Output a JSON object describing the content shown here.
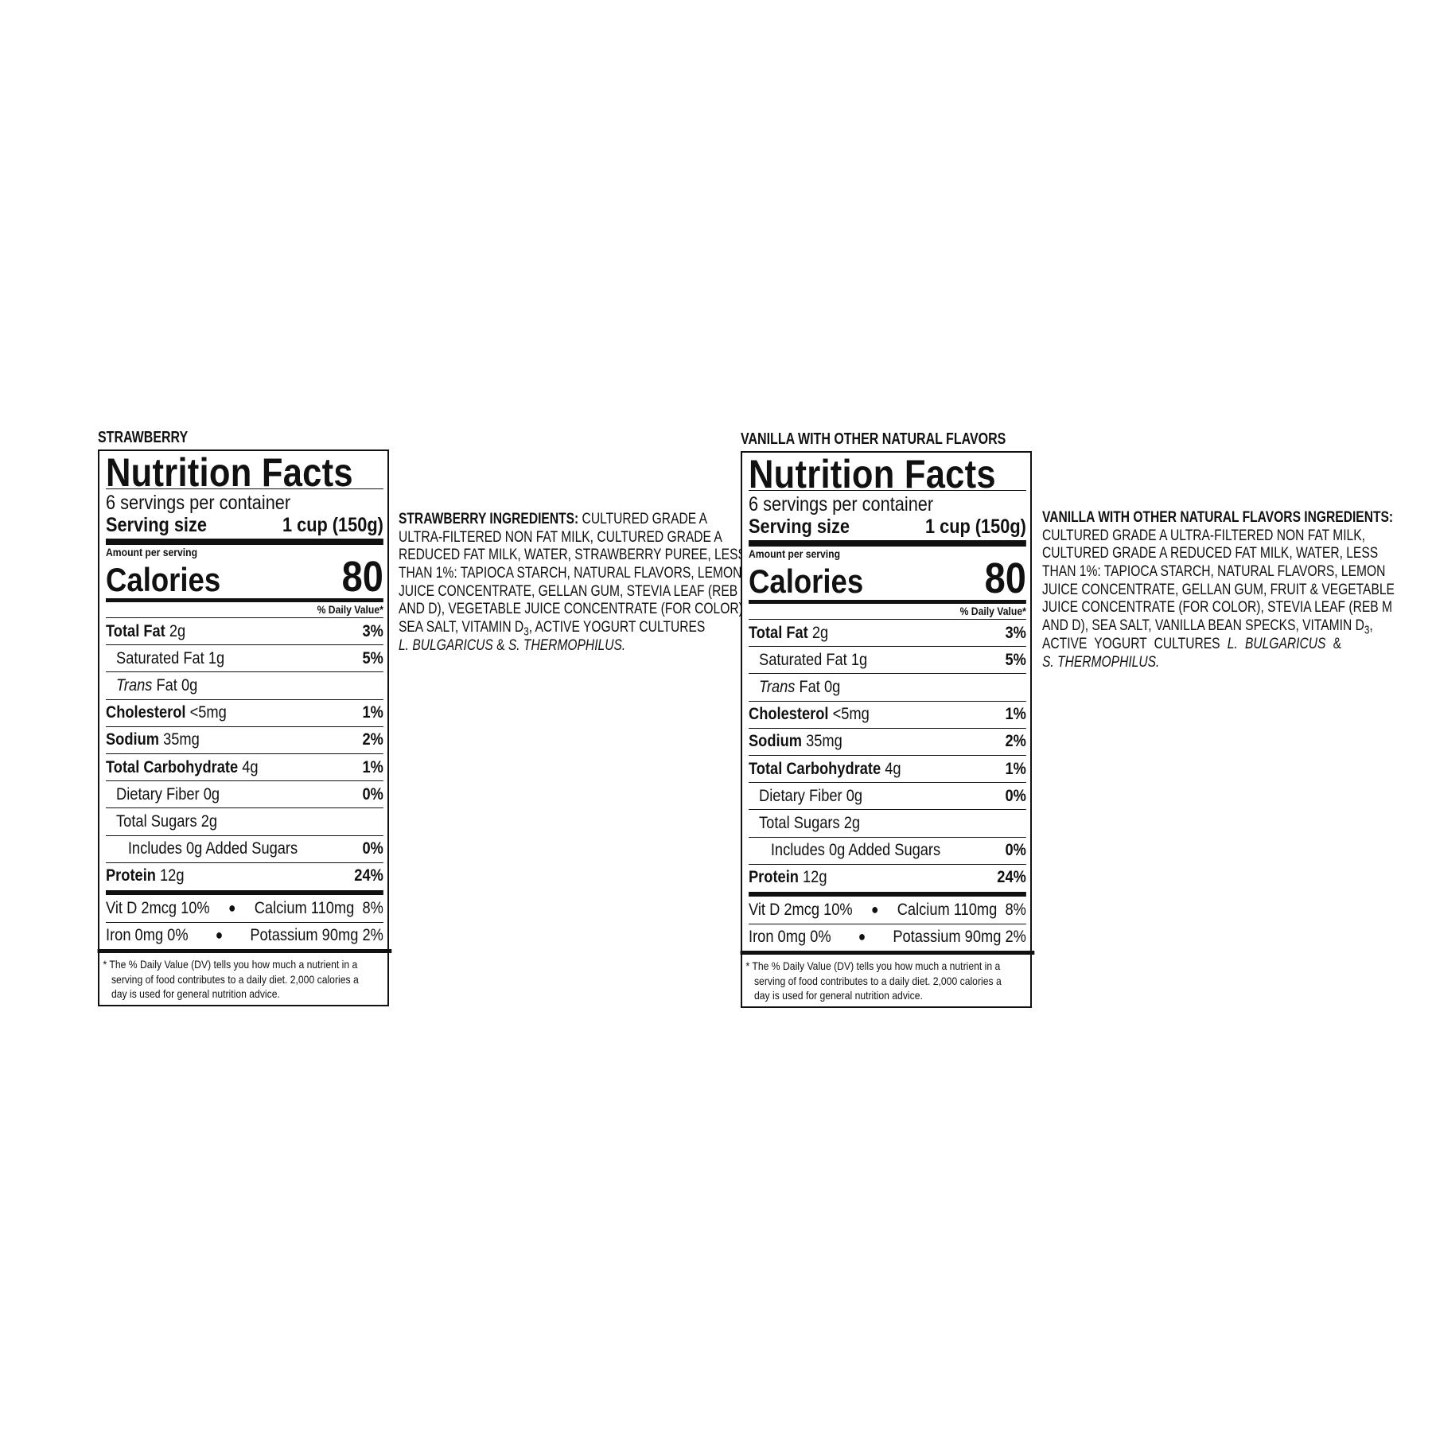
{
  "panels": [
    {
      "flavor": "STRAWBERRY",
      "title": "Nutrition Facts",
      "servings": "6 servings per container",
      "serving_size_label": "Serving size",
      "serving_size_value": "1 cup (150g)",
      "amount_per_serving": "Amount per serving",
      "calories_label": "Calories",
      "calories_value": "80",
      "daily_value_header": "% Daily Value*",
      "nutrients": [
        {
          "name": "Total Fat",
          "amount": "2g",
          "dv": "3%",
          "bold": true,
          "indent": 0
        },
        {
          "name": "Saturated Fat",
          "amount": "1g",
          "dv": "5%",
          "bold": false,
          "indent": 1
        },
        {
          "name": "Trans",
          "name_suffix": " Fat",
          "amount": "0g",
          "dv": "",
          "bold": false,
          "indent": 1,
          "italic": true
        },
        {
          "name": "Cholesterol",
          "amount": "<5mg",
          "dv": "1%",
          "bold": true,
          "indent": 0
        },
        {
          "name": "Sodium",
          "amount": "35mg",
          "dv": "2%",
          "bold": true,
          "indent": 0
        },
        {
          "name": "Total Carbohydrate",
          "amount": "4g",
          "dv": "1%",
          "bold": true,
          "indent": 0
        },
        {
          "name": "Dietary Fiber",
          "amount": "0g",
          "dv": "0%",
          "bold": false,
          "indent": 1
        },
        {
          "name": "Total Sugars",
          "amount": "2g",
          "dv": "",
          "bold": false,
          "indent": 1
        },
        {
          "name": "Includes 0g Added Sugars",
          "amount": "",
          "dv": "0%",
          "bold": false,
          "indent": 2
        },
        {
          "name": "Protein",
          "amount": "12g",
          "dv": "24%",
          "bold": true,
          "indent": 0
        }
      ],
      "vitamins": [
        [
          "Vit D 2mcg 10%",
          "Calcium 110mg  8%"
        ],
        [
          "Iron 0mg 0%",
          "Potassium 90mg 2%"
        ]
      ],
      "footnote": [
        "* The % Daily Value (DV) tells you how much a nutrient in a",
        "serving of food contributes to a daily diet. 2,000 calories a",
        "day is used for general nutrition advice."
      ],
      "ingredients": [
        [
          {
            "t": "STRAWBERRY INGREDIENTS:",
            "s": "b"
          },
          {
            "t": " CULTURED GRADE A"
          }
        ],
        [
          {
            "t": "ULTRA-FILTERED NON FAT MILK, CULTURED GRADE A"
          }
        ],
        [
          {
            "t": "REDUCED FAT MILK, WATER, STRAWBERRY PUREE, LESS"
          }
        ],
        [
          {
            "t": "THAN 1%: TAPIOCA STARCH, NATURAL FLAVORS, LEMON"
          }
        ],
        [
          {
            "t": "JUICE CONCENTRATE, GELLAN GUM, STEVIA LEAF (REB M"
          }
        ],
        [
          {
            "t": "AND D), VEGETABLE JUICE CONCENTRATE (FOR COLOR),"
          }
        ],
        [
          {
            "t": "SEA SALT, VITAMIN D"
          },
          {
            "t": "3",
            "s": "sub"
          },
          {
            "t": ", ACTIVE YOGURT CULTURES"
          }
        ],
        [
          {
            "t": "L. BULGARICUS",
            "s": "i"
          },
          {
            "t": " & "
          },
          {
            "t": "S. THERMOPHILUS.",
            "s": "i"
          }
        ]
      ]
    },
    {
      "flavor": "VANILLA WITH OTHER NATURAL FLAVORS",
      "title": "Nutrition Facts",
      "servings": "6 servings per container",
      "serving_size_label": "Serving size",
      "serving_size_value": "1 cup (150g)",
      "amount_per_serving": "Amount per serving",
      "calories_label": "Calories",
      "calories_value": "80",
      "daily_value_header": "% Daily Value*",
      "nutrients": [
        {
          "name": "Total Fat",
          "amount": "2g",
          "dv": "3%",
          "bold": true,
          "indent": 0
        },
        {
          "name": "Saturated Fat",
          "amount": "1g",
          "dv": "5%",
          "bold": false,
          "indent": 1
        },
        {
          "name": "Trans",
          "name_suffix": " Fat",
          "amount": "0g",
          "dv": "",
          "bold": false,
          "indent": 1,
          "italic": true
        },
        {
          "name": "Cholesterol",
          "amount": "<5mg",
          "dv": "1%",
          "bold": true,
          "indent": 0
        },
        {
          "name": "Sodium",
          "amount": "35mg",
          "dv": "2%",
          "bold": true,
          "indent": 0
        },
        {
          "name": "Total Carbohydrate",
          "amount": "4g",
          "dv": "1%",
          "bold": true,
          "indent": 0
        },
        {
          "name": "Dietary Fiber",
          "amount": "0g",
          "dv": "0%",
          "bold": false,
          "indent": 1
        },
        {
          "name": "Total Sugars",
          "amount": "2g",
          "dv": "",
          "bold": false,
          "indent": 1
        },
        {
          "name": "Includes 0g Added Sugars",
          "amount": "",
          "dv": "0%",
          "bold": false,
          "indent": 2
        },
        {
          "name": "Protein",
          "amount": "12g",
          "dv": "24%",
          "bold": true,
          "indent": 0
        }
      ],
      "vitamins": [
        [
          "Vit D 2mcg 10%",
          "Calcium 110mg  8%"
        ],
        [
          "Iron 0mg 0%",
          "Potassium 90mg 2%"
        ]
      ],
      "footnote": [
        "* The % Daily Value (DV) tells you how much a nutrient in a",
        "serving of food contributes to a daily diet. 2,000 calories a",
        "day is used for general nutrition advice."
      ],
      "ingredients": [
        [
          {
            "t": "VANILLA WITH OTHER NATURAL FLAVORS INGREDIENTS:",
            "s": "b"
          }
        ],
        [
          {
            "t": "CULTURED GRADE A ULTRA-FILTERED NON FAT MILK,"
          }
        ],
        [
          {
            "t": "CULTURED GRADE A REDUCED FAT MILK, WATER, LESS"
          }
        ],
        [
          {
            "t": "THAN 1%: TAPIOCA STARCH, NATURAL FLAVORS, LEMON"
          }
        ],
        [
          {
            "t": "JUICE CONCENTRATE, GELLAN GUM, FRUIT & VEGETABLE"
          }
        ],
        [
          {
            "t": "JUICE CONCENTRATE (FOR COLOR), STEVIA LEAF (REB M"
          }
        ],
        [
          {
            "t": "AND D), SEA SALT, VANILLA BEAN SPECKS, VITAMIN D"
          },
          {
            "t": "3",
            "s": "sub"
          },
          {
            "t": ","
          }
        ],
        [
          {
            "t": "ACTIVE YOGURT CULTURES "
          },
          {
            "t": "L. BULGARICUS",
            "s": "i"
          },
          {
            "t": " &"
          }
        ],
        [
          {
            "t": "S. THERMOPHILUS.",
            "s": "i"
          }
        ]
      ]
    }
  ]
}
